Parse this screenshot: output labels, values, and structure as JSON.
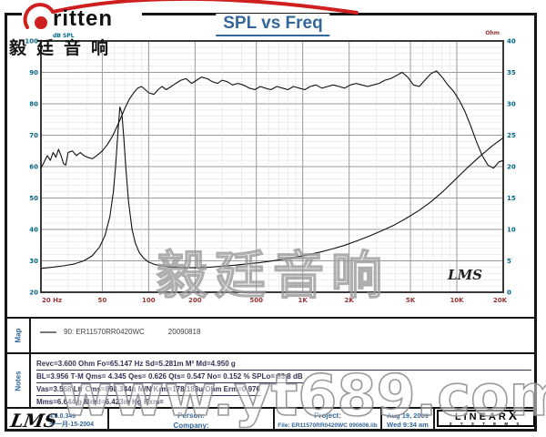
{
  "page": {
    "title": "SPL vs Freq"
  },
  "logo": {
    "brand_text": "ritten",
    "chinese": "毅廷音响"
  },
  "watermarks": {
    "center": "毅廷音响",
    "site": "www.yt689.com"
  },
  "chart_data": {
    "type": "line",
    "title": "SPL vs Freq",
    "grid": {
      "major": "#9a9a9a",
      "minor": "#dcdcdc"
    },
    "x_axis": {
      "label": "Hz",
      "scale": "log",
      "min": 20,
      "max": 20000,
      "tick_values": [
        20,
        50,
        100,
        200,
        500,
        1000,
        2000,
        5000,
        10000,
        20000
      ],
      "tick_labels": [
        "20 Hz",
        "50",
        "100",
        "200",
        "500",
        "1K",
        "2K",
        "5K",
        "10K",
        "20K"
      ]
    },
    "y_left": {
      "label": "dB SPL",
      "min": 20,
      "max": 100,
      "ticks": [
        100,
        90,
        80,
        70,
        60,
        50,
        40,
        30,
        20
      ]
    },
    "y_right": {
      "label": "Ohm",
      "min": 0,
      "max": 40,
      "ticks": [
        40,
        35,
        30,
        25,
        20,
        15,
        10,
        5,
        0
      ]
    },
    "legend_position": "below",
    "inner_label": "LMS",
    "series": [
      {
        "name": "90: ER11570RR0420WC  20090818 (SPL)",
        "axis": "left",
        "color": "#111111",
        "points": [
          [
            20,
            59.5
          ],
          [
            21,
            61.5
          ],
          [
            22,
            63.5
          ],
          [
            23,
            62
          ],
          [
            24,
            64.5
          ],
          [
            25,
            63
          ],
          [
            26,
            65.5
          ],
          [
            27,
            63.5
          ],
          [
            28,
            61
          ],
          [
            29,
            60.5
          ],
          [
            30,
            64.5
          ],
          [
            32,
            65
          ],
          [
            34,
            63.5
          ],
          [
            36,
            64.5
          ],
          [
            38,
            63.5
          ],
          [
            40,
            63
          ],
          [
            43,
            62.5
          ],
          [
            46,
            63.5
          ],
          [
            50,
            65
          ],
          [
            54,
            67
          ],
          [
            58,
            69.5
          ],
          [
            62,
            72.5
          ],
          [
            66,
            75.5
          ],
          [
            70,
            78.5
          ],
          [
            75,
            81.5
          ],
          [
            80,
            83.5
          ],
          [
            85,
            85
          ],
          [
            90,
            85.5
          ],
          [
            95,
            84.5
          ],
          [
            100,
            83.5
          ],
          [
            108,
            83
          ],
          [
            115,
            84.5
          ],
          [
            122,
            85.5
          ],
          [
            130,
            84.5
          ],
          [
            140,
            85.5
          ],
          [
            150,
            86.5
          ],
          [
            162,
            87.5
          ],
          [
            175,
            88
          ],
          [
            190,
            86.5
          ],
          [
            205,
            87.5
          ],
          [
            220,
            88.5
          ],
          [
            240,
            88
          ],
          [
            260,
            87
          ],
          [
            280,
            86.5
          ],
          [
            300,
            87.5
          ],
          [
            325,
            87
          ],
          [
            350,
            86
          ],
          [
            380,
            86.5
          ],
          [
            410,
            86
          ],
          [
            450,
            85
          ],
          [
            490,
            84.5
          ],
          [
            530,
            85.5
          ],
          [
            570,
            85
          ],
          [
            620,
            84.5
          ],
          [
            680,
            85.5
          ],
          [
            740,
            85
          ],
          [
            800,
            84.5
          ],
          [
            870,
            85.5
          ],
          [
            950,
            85
          ],
          [
            1030,
            84.5
          ],
          [
            1120,
            85.5
          ],
          [
            1220,
            86
          ],
          [
            1330,
            85
          ],
          [
            1450,
            85.5
          ],
          [
            1580,
            86
          ],
          [
            1720,
            85.5
          ],
          [
            1870,
            85
          ],
          [
            2040,
            86
          ],
          [
            2220,
            86.5
          ],
          [
            2420,
            86
          ],
          [
            2640,
            85.5
          ],
          [
            2870,
            86
          ],
          [
            3130,
            86.5
          ],
          [
            3410,
            87.5
          ],
          [
            3720,
            88
          ],
          [
            4050,
            89
          ],
          [
            4410,
            90
          ],
          [
            4800,
            88.5
          ],
          [
            5230,
            86
          ],
          [
            5700,
            85.5
          ],
          [
            6200,
            87.5
          ],
          [
            6760,
            89.5
          ],
          [
            7360,
            90.5
          ],
          [
            8020,
            88.5
          ],
          [
            8740,
            86
          ],
          [
            9520,
            84
          ],
          [
            10400,
            81
          ],
          [
            11300,
            77.5
          ],
          [
            12300,
            73
          ],
          [
            13400,
            68
          ],
          [
            14600,
            63.5
          ],
          [
            15900,
            60.5
          ],
          [
            17300,
            59.5
          ],
          [
            18800,
            61.5
          ],
          [
            20000,
            62
          ]
        ]
      },
      {
        "name": "Impedance",
        "axis": "right",
        "color": "#111111",
        "points": [
          [
            20,
            3.8
          ],
          [
            24,
            4.0
          ],
          [
            28,
            4.2
          ],
          [
            33,
            4.5
          ],
          [
            38,
            5.0
          ],
          [
            43,
            5.8
          ],
          [
            48,
            7.2
          ],
          [
            52,
            9
          ],
          [
            56,
            12
          ],
          [
            59,
            16
          ],
          [
            61,
            20
          ],
          [
            63,
            25
          ],
          [
            65,
            29.5
          ],
          [
            67,
            28.5
          ],
          [
            69,
            24.5
          ],
          [
            71,
            20
          ],
          [
            74,
            14.5
          ],
          [
            78,
            10
          ],
          [
            82,
            7.8
          ],
          [
            87,
            6.3
          ],
          [
            93,
            5.4
          ],
          [
            100,
            4.8
          ],
          [
            110,
            4.4
          ],
          [
            122,
            4.2
          ],
          [
            137,
            4.05
          ],
          [
            155,
            3.95
          ],
          [
            180,
            3.9
          ],
          [
            210,
            3.9
          ],
          [
            250,
            4.0
          ],
          [
            300,
            4.15
          ],
          [
            360,
            4.3
          ],
          [
            430,
            4.5
          ],
          [
            520,
            4.7
          ],
          [
            620,
            4.95
          ],
          [
            750,
            5.25
          ],
          [
            900,
            5.6
          ],
          [
            1080,
            5.95
          ],
          [
            1300,
            6.4
          ],
          [
            1560,
            6.9
          ],
          [
            1880,
            7.5
          ],
          [
            2260,
            8.2
          ],
          [
            2710,
            8.95
          ],
          [
            3260,
            9.8
          ],
          [
            3920,
            10.7
          ],
          [
            4710,
            11.8
          ],
          [
            5660,
            13
          ],
          [
            6800,
            14.4
          ],
          [
            8170,
            16.1
          ],
          [
            9820,
            18
          ],
          [
            11800,
            19.9
          ],
          [
            14200,
            21.7
          ],
          [
            17000,
            23.3
          ],
          [
            20000,
            24.6
          ]
        ]
      }
    ]
  },
  "map_section": {
    "label": "Map",
    "legend_name": "90: ER11570RR0420WC",
    "legend_date": "20090818"
  },
  "notes_section": {
    "label": "Notes",
    "full_width_underline": [
      0,
      3
    ],
    "lines": [
      "Revc=3.600 Ohm  Fo=65.147 Hz  Sd=5.281m M²  Md=4.950 g",
      "BL=3.956 T·M  Qms= 4.345  Qes= 0.626  Qts= 0.547  No= 0.152 %  SPLo= 83.8 dB",
      "Vas=3.558 Ltr  Cms=898.344u M/N  Krm=178.183u Ohm  Erm=0.976",
      "Mms=6.644 g  Mmd=6.423m Kg  Kxm="
    ]
  },
  "footer": {
    "lms_logo": "LMS",
    "version": "4.5.0.349",
    "version_date": "十一月-15-2004",
    "person_label": "Person:",
    "company_label": "Company:",
    "project_label": "Project:",
    "file_label": "File: ER11570RR0420WC  090606.lib",
    "date": "Aug 19, 2009",
    "time": "Wed  9:34 am",
    "brand_name_left": "LINEAR",
    "brand_name_x": "X",
    "brand_sub": "S Y S T E M S"
  },
  "colors": {
    "title": "#336699",
    "axis_db": "#006688",
    "axis_hz": "#993333",
    "notes_text": "#333355",
    "footer_text": "#336699",
    "curve": "#111111",
    "watermark": "#9b9b9b",
    "brand_red": "#cf2020"
  }
}
